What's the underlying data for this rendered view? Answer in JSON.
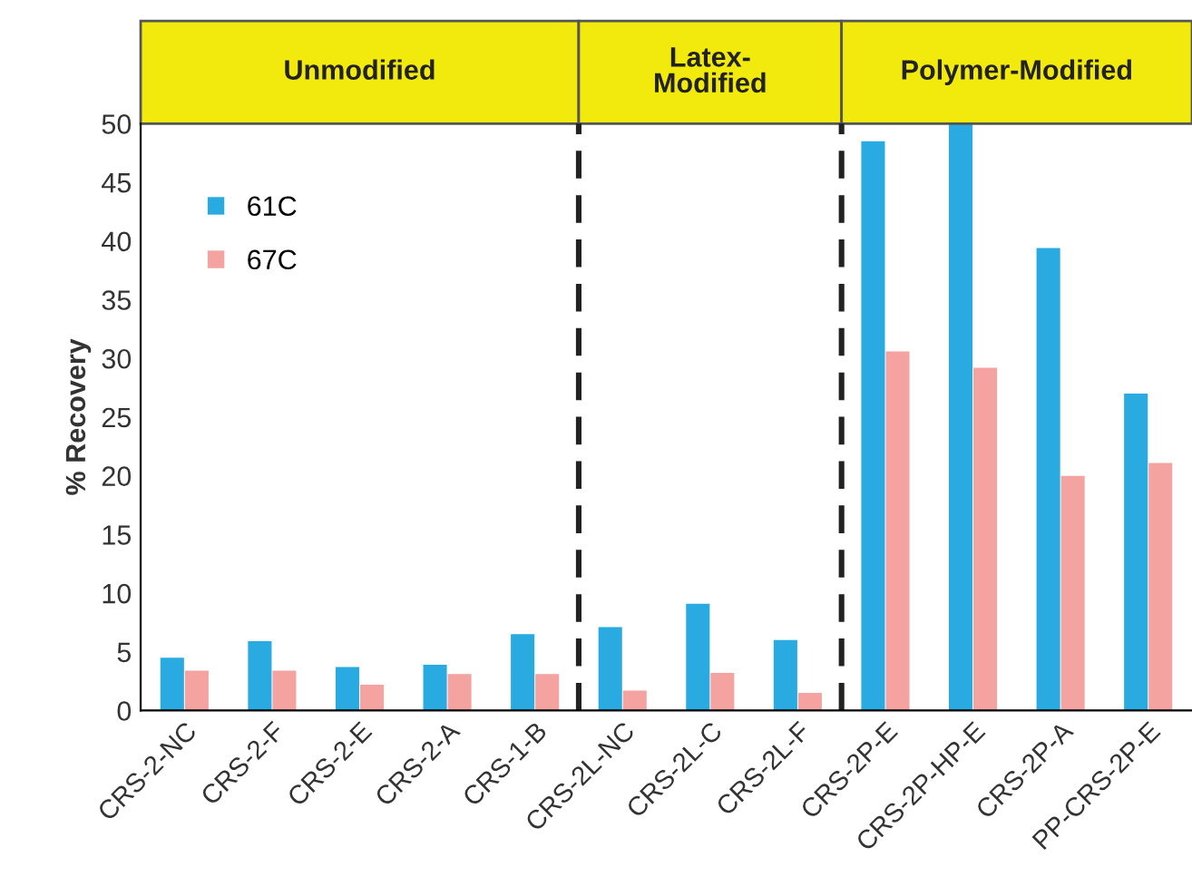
{
  "chart_data": {
    "type": "bar",
    "ylabel": "% Recovery",
    "categories": [
      "CRS-2-NC",
      "CRS-2-F",
      "CRS-2-E",
      "CRS-2-A",
      "CRS-1-B",
      "CRS-2L-NC",
      "CRS-2L-C",
      "CRS-2L-F",
      "CRS-2P-E",
      "CRS-2P-HP-E",
      "CRS-2P-A",
      "PP-CRS-2P-E"
    ],
    "series": [
      {
        "name": "61C",
        "color": "#29abe2",
        "values": [
          4.5,
          5.9,
          3.7,
          3.9,
          6.5,
          7.1,
          9.1,
          6.0,
          48.5,
          50,
          39.4,
          27.0
        ]
      },
      {
        "name": "67C",
        "color": "#f4a3a0",
        "values": [
          3.4,
          3.4,
          2.2,
          3.1,
          3.1,
          1.7,
          3.2,
          1.5,
          30.6,
          29.2,
          20.0,
          21.1
        ]
      }
    ],
    "ylim": [
      0,
      50
    ],
    "yticks": [
      0,
      5,
      10,
      15,
      20,
      25,
      30,
      35,
      40,
      45,
      50
    ],
    "annotations": [
      "Unmodified",
      "Latex-\nModified",
      "Polymer-Modified"
    ],
    "grid": false,
    "legend": "top left"
  }
}
